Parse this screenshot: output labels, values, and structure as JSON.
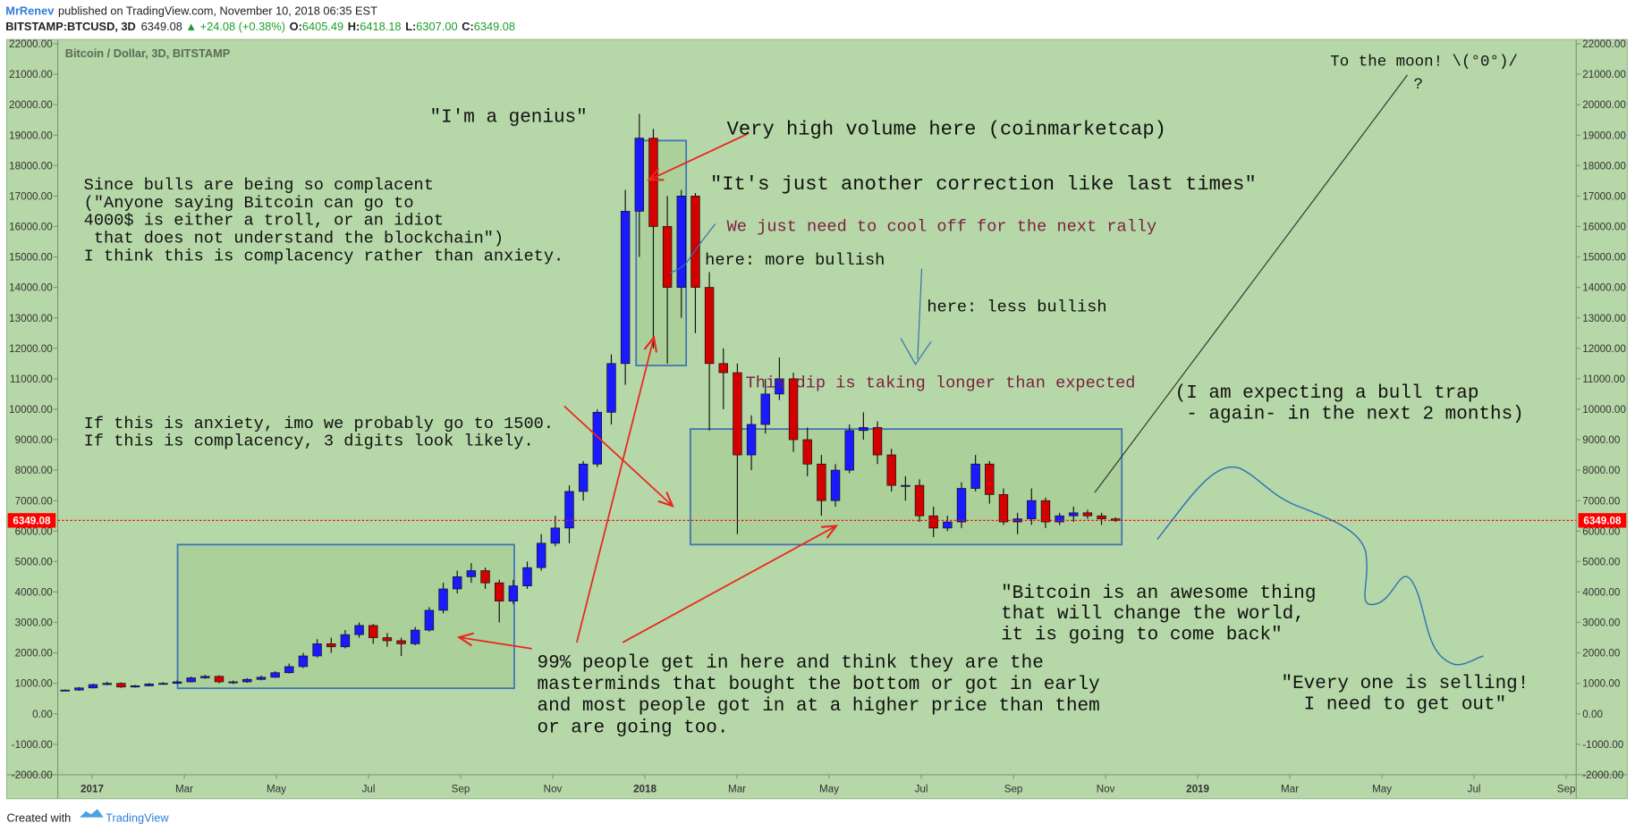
{
  "header": {
    "author": "MrRenev",
    "published": "published on TradingView.com, November 10, 2018 06:35 EST",
    "symbol": "BITSTAMP:BTCUSD, 3D",
    "last": "6349.08",
    "change": "▲ +24.08 (+0.38%)",
    "ohlc": [
      {
        "key": "O:",
        "value": "6405.49"
      },
      {
        "key": "H:",
        "value": "6418.18"
      },
      {
        "key": "L:",
        "value": "6307.00"
      },
      {
        "key": "C:",
        "value": "6349.08"
      }
    ]
  },
  "footer": {
    "created": "Created with",
    "brand": "TradingView"
  },
  "chart_data": {
    "type": "candlestick",
    "title": "Bitcoin / Dollar, 3D, BITSTAMP",
    "up_color": "#1a1aff",
    "down_color": "#d40000",
    "background": "#b6d7a8",
    "ylim": [
      -2000,
      22000
    ],
    "yticks": [
      {
        "value": -2000,
        "label": "-2000.00"
      },
      {
        "value": -1000,
        "label": "-1000.00"
      },
      {
        "value": 0,
        "label": "0.00"
      },
      {
        "value": 1000,
        "label": "1000.00"
      },
      {
        "value": 2000,
        "label": "2000.00"
      },
      {
        "value": 3000,
        "label": "3000.00"
      },
      {
        "value": 4000,
        "label": "4000.00"
      },
      {
        "value": 5000,
        "label": "5000.00"
      },
      {
        "value": 6000,
        "label": "6000.00"
      },
      {
        "value": 7000,
        "label": "7000.00"
      },
      {
        "value": 8000,
        "label": "8000.00"
      },
      {
        "value": 9000,
        "label": "9000.00"
      },
      {
        "value": 10000,
        "label": "10000.00"
      },
      {
        "value": 11000,
        "label": "11000.00"
      },
      {
        "value": 12000,
        "label": "12000.00"
      },
      {
        "value": 13000,
        "label": "13000.00"
      },
      {
        "value": 14000,
        "label": "14000.00"
      },
      {
        "value": 15000,
        "label": "15000.00"
      },
      {
        "value": 16000,
        "label": "16000.00"
      },
      {
        "value": 17000,
        "label": "17000.00"
      },
      {
        "value": 18000,
        "label": "18000.00"
      },
      {
        "value": 19000,
        "label": "19000.00"
      },
      {
        "value": 20000,
        "label": "20000.00"
      },
      {
        "value": 21000,
        "label": "21000.00"
      },
      {
        "value": 22000,
        "label": "22000.00"
      }
    ],
    "x_axis_labels": [
      "2017",
      "Mar",
      "May",
      "Jul",
      "Sep",
      "Nov",
      "2018",
      "Mar",
      "May",
      "Jul",
      "Sep",
      "Nov",
      "2019",
      "Mar",
      "May",
      "Jul",
      "Sep"
    ],
    "price_line": {
      "value": 6349.08,
      "label": "6349.08",
      "color": "#ff0000"
    },
    "open": [
      760,
      780,
      850,
      960,
      1000,
      880,
      920,
      980,
      1000,
      1050,
      1180,
      1230,
      1050,
      1050,
      1130,
      1200,
      1350,
      1550,
      1900,
      2300,
      2200,
      2600,
      2900,
      2500,
      2400,
      2300,
      2750,
      3400,
      4100,
      4500,
      4700,
      4300,
      3700,
      4200,
      4800,
      5600,
      6100,
      7300,
      8200,
      9900,
      11500,
      16500,
      18900,
      16000,
      14000,
      17000,
      14000,
      11500,
      11200,
      8500,
      9500,
      10500,
      11000,
      9000,
      8200,
      7000,
      8000,
      9300,
      9400,
      8500,
      7500,
      7500,
      6500,
      6100,
      6300,
      7400,
      8200,
      7200,
      6300,
      6400,
      7000,
      6300,
      6500,
      6600,
      6500,
      6400
    ],
    "high": [
      800,
      880,
      990,
      1050,
      1030,
      950,
      1010,
      1040,
      1090,
      1220,
      1280,
      1260,
      1090,
      1170,
      1250,
      1400,
      1650,
      2000,
      2450,
      2500,
      2750,
      3000,
      2950,
      2650,
      2500,
      2850,
      3500,
      4300,
      4700,
      4950,
      4800,
      4400,
      4400,
      5000,
      5900,
      6500,
      7500,
      8300,
      10000,
      11800,
      17200,
      19700,
      19200,
      17000,
      17200,
      17100,
      14500,
      12000,
      11500,
      9800,
      11000,
      11700,
      11200,
      9400,
      8500,
      8200,
      9500,
      9900,
      9600,
      8700,
      7800,
      7700,
      6800,
      6500,
      7600,
      8500,
      8300,
      7400,
      6600,
      7400,
      7100,
      6600,
      6800,
      6700,
      6600,
      6450
    ],
    "low": [
      750,
      760,
      830,
      940,
      850,
      860,
      900,
      960,
      980,
      1030,
      1150,
      1000,
      980,
      1020,
      1100,
      1180,
      1320,
      1500,
      1850,
      2000,
      2150,
      2500,
      2300,
      2200,
      1900,
      2250,
      2700,
      3300,
      3950,
      4300,
      4100,
      3000,
      3600,
      4100,
      4700,
      5500,
      5600,
      7000,
      8100,
      9500,
      10800,
      15000,
      12000,
      11500,
      13000,
      12500,
      9300,
      10000,
      5900,
      8000,
      9200,
      10300,
      8600,
      7800,
      6500,
      6800,
      7900,
      9000,
      8200,
      7300,
      7000,
      6300,
      5800,
      6000,
      6100,
      7300,
      6900,
      6200,
      5900,
      6200,
      6100,
      6200,
      6300,
      6400,
      6200,
      6300
    ],
    "close": [
      780,
      850,
      960,
      1000,
      880,
      920,
      980,
      1000,
      1050,
      1180,
      1230,
      1050,
      1050,
      1130,
      1200,
      1350,
      1550,
      1900,
      2300,
      2200,
      2600,
      2900,
      2500,
      2400,
      2300,
      2750,
      3400,
      4100,
      4500,
      4700,
      4300,
      3700,
      4200,
      4800,
      5600,
      6100,
      7300,
      8200,
      9900,
      11500,
      16500,
      18900,
      16000,
      14000,
      17000,
      14000,
      11500,
      11200,
      8500,
      9500,
      10500,
      11000,
      9000,
      8200,
      7000,
      8000,
      9300,
      9400,
      8500,
      7500,
      7500,
      6500,
      6100,
      6300,
      7400,
      8200,
      7200,
      6300,
      6400,
      7000,
      6300,
      6500,
      6600,
      6500,
      6400,
      6349
    ],
    "annotations": [
      {
        "lines": [
          "\"I'm a genius\""
        ]
      },
      {
        "lines": [
          "Very high volume here (coinmarketcap)"
        ]
      },
      {
        "lines": [
          "\"It's just another correction like last times\""
        ]
      },
      {
        "lines": [
          "We just need to cool off for the next rally"
        ],
        "color": "#7b1f42"
      },
      {
        "lines": [
          "here: more bullish"
        ]
      },
      {
        "lines": [
          "here: less bullish"
        ]
      },
      {
        "lines": [
          "This dip is taking longer than expected"
        ],
        "color": "#7b1f42"
      },
      {
        "lines": [
          "Since bulls are being so complacent",
          "(\"Anyone saying Bitcoin can go to",
          "4000$ is either a troll, or an idiot",
          " that does not understand the blockchain\")",
          "I think this is complacency rather than anxiety."
        ]
      },
      {
        "lines": [
          "If this is anxiety, imo we probably go to 1500.",
          "If this is complacency, 3 digits look likely."
        ]
      },
      {
        "lines": [
          "To the moon! \\(°0°)/",
          "?"
        ]
      },
      {
        "lines": [
          "(I am expecting a bull trap",
          " - again- in the next 2 months)"
        ]
      },
      {
        "lines": [
          "\"Bitcoin is an awesome thing",
          "that will change the world,",
          "it is going to come back\""
        ]
      },
      {
        "lines": [
          "99% people get in here and think they are the",
          "masterminds that bought the bottom or got in early",
          "and most people got in at a higher price than them",
          "or are going too."
        ]
      },
      {
        "lines": [
          "\"Every one is selling!",
          "  I need to get out\""
        ]
      }
    ]
  }
}
